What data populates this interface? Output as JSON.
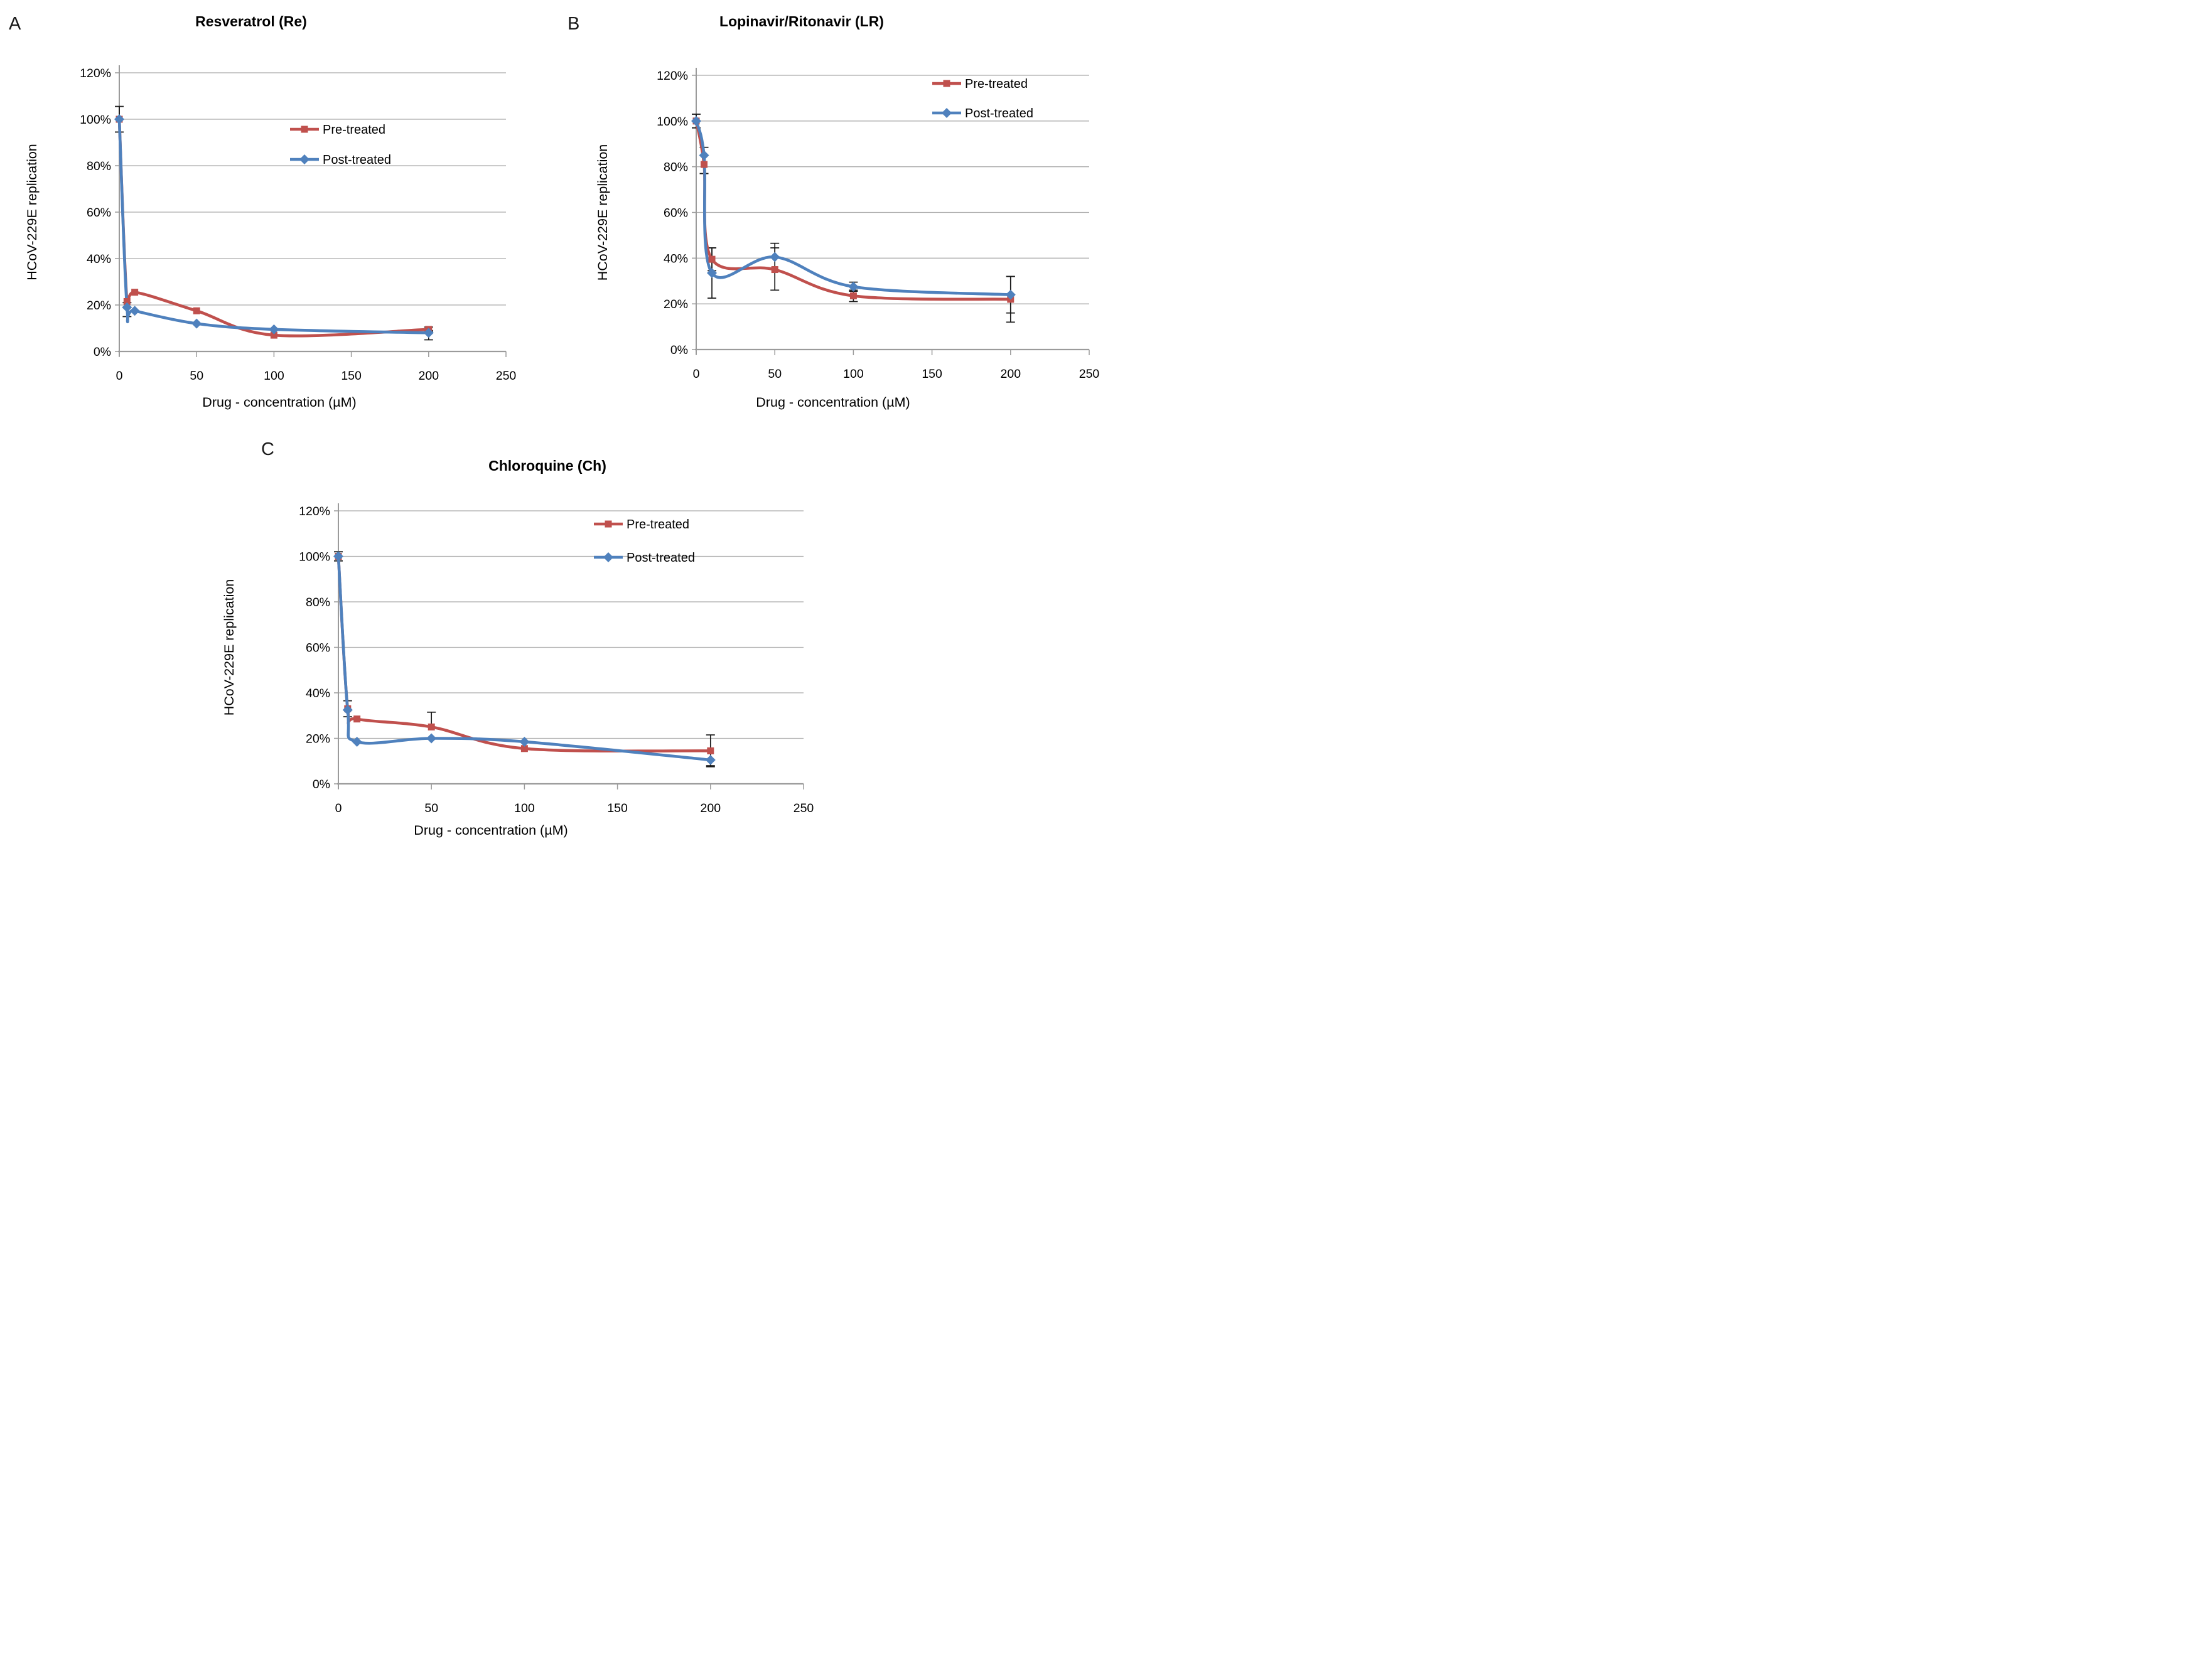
{
  "figure": {
    "background": "#ffffff",
    "error_bar_color": "#1a1a1a",
    "gridline_color": "#ababab",
    "axis_color": "#9b9b9b"
  },
  "chart_data": [
    {
      "type": "line",
      "panel_label": "A",
      "title": "Resveratrol (Re)",
      "xlabel": "Drug - concentration (µM)",
      "ylabel": "HCoV-229E replication",
      "xlim": [
        0,
        250
      ],
      "ylim_percent": [
        0,
        120
      ],
      "x_ticks": [
        0,
        50,
        100,
        150,
        200,
        250
      ],
      "y_tick_labels": [
        "0%",
        "20%",
        "40%",
        "60%",
        "80%",
        "100%",
        "120%"
      ],
      "grid": "horizontal",
      "legend_position": "inside-upper-right-of-center",
      "x": [
        0,
        5,
        10,
        50,
        100,
        200
      ],
      "series": [
        {
          "name": "Pre-treated",
          "marker": "square",
          "color": "#C0504D",
          "values": [
            100,
            21.5,
            25.5,
            17.5,
            7,
            9.5
          ],
          "err_plus": [
            5.5,
            0,
            0,
            0,
            0,
            1
          ],
          "err_minus": [
            5.5,
            0,
            0,
            0,
            0,
            1
          ]
        },
        {
          "name": "Post-treated",
          "marker": "diamond",
          "color": "#4F81BD",
          "values": [
            100,
            19,
            17.5,
            12,
            9.5,
            8
          ],
          "err_plus": [
            5.5,
            2,
            0,
            0,
            0,
            1
          ],
          "err_minus": [
            5.5,
            4,
            0,
            0,
            0,
            3
          ]
        }
      ]
    },
    {
      "type": "line",
      "panel_label": "B",
      "title": "Lopinavir/Ritonavir (LR)",
      "xlabel": "Drug - concentration (µM)",
      "ylabel": "HCoV-229E replication",
      "xlim": [
        0,
        250
      ],
      "ylim_percent": [
        0,
        120
      ],
      "x_ticks": [
        0,
        50,
        100,
        150,
        200,
        250
      ],
      "y_tick_labels": [
        "0%",
        "20%",
        "40%",
        "60%",
        "80%",
        "100%",
        "120%"
      ],
      "grid": "horizontal",
      "legend_position": "inside-top-right",
      "x": [
        0,
        5,
        10,
        50,
        100,
        200
      ],
      "series": [
        {
          "name": "Pre-treated",
          "marker": "square",
          "color": "#C0504D",
          "values": [
            100,
            81,
            39.5,
            35,
            23.5,
            22
          ],
          "err_plus": [
            3,
            4,
            5,
            9.5,
            2.5,
            10
          ],
          "err_minus": [
            3,
            4,
            5,
            9,
            2.5,
            10
          ]
        },
        {
          "name": "Post-treated",
          "marker": "diamond",
          "color": "#4F81BD",
          "values": [
            100,
            85,
            33.5,
            40.5,
            27.5,
            24
          ],
          "err_plus": [
            3,
            3.5,
            11,
            6,
            2,
            8
          ],
          "err_minus": [
            3,
            8,
            11,
            0,
            2,
            8
          ]
        }
      ]
    },
    {
      "type": "line",
      "panel_label": "C",
      "title": "Chloroquine (Ch)",
      "xlabel": "Drug - concentration (µM)",
      "ylabel": "HCoV-229E replication",
      "xlim": [
        0,
        250
      ],
      "ylim_percent": [
        0,
        120
      ],
      "x_ticks": [
        0,
        50,
        100,
        150,
        200,
        250
      ],
      "y_tick_labels": [
        "0%",
        "20%",
        "40%",
        "60%",
        "80%",
        "100%",
        "120%"
      ],
      "grid": "horizontal",
      "legend_position": "inside-top-right",
      "x": [
        0,
        5,
        10,
        50,
        100,
        200
      ],
      "series": [
        {
          "name": "Pre-treated",
          "marker": "square",
          "color": "#C0504D",
          "values": [
            100,
            33,
            28.5,
            25,
            15.5,
            14.5
          ],
          "err_plus": [
            2,
            3.5,
            0,
            6.5,
            0,
            7
          ],
          "err_minus": [
            2,
            3.5,
            0,
            0,
            0,
            6.5
          ]
        },
        {
          "name": "Post-treated",
          "marker": "diamond",
          "color": "#4F81BD",
          "values": [
            100,
            32.5,
            18.5,
            20,
            18.5,
            10.5
          ],
          "err_plus": [
            2,
            0,
            0,
            0,
            0,
            0
          ],
          "err_minus": [
            2,
            0,
            0,
            0,
            0,
            3
          ]
        }
      ]
    }
  ]
}
